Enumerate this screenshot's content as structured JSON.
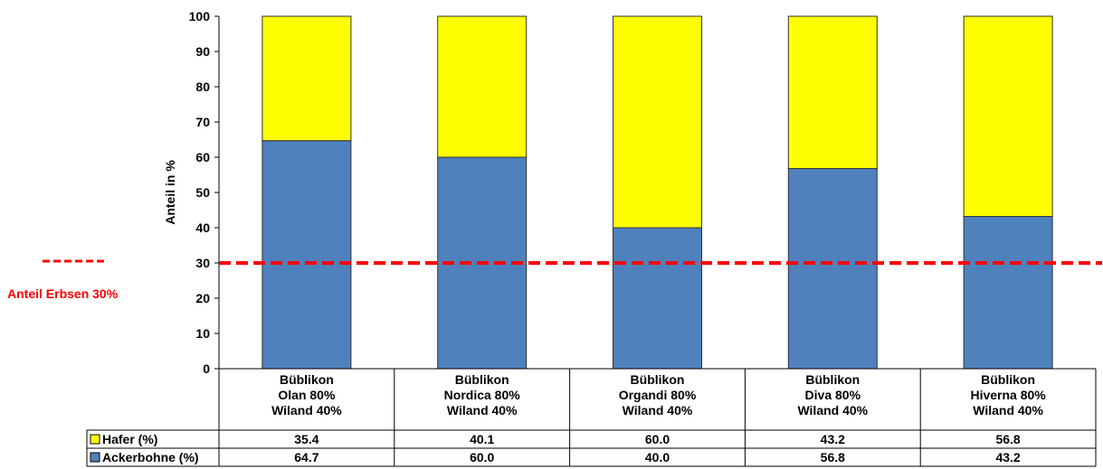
{
  "chart_data": {
    "type": "bar",
    "stacked": true,
    "ylabel": "Anteil in %",
    "ylim": [
      0,
      100
    ],
    "yticks": [
      0,
      10,
      20,
      30,
      40,
      50,
      60,
      70,
      80,
      90,
      100
    ],
    "grid": false,
    "categories": [
      [
        "Büblikon",
        "Olan 80%",
        "Wiland 40%"
      ],
      [
        "Büblikon",
        "Nordica 80%",
        "Wiland 40%"
      ],
      [
        "Büblikon",
        "Organdi 80%",
        "Wiland 40%"
      ],
      [
        "Büblikon",
        "Diva 80%",
        "Wiland 40%"
      ],
      [
        "Büblikon",
        "Hiverna 80%",
        "Wiland 40%"
      ]
    ],
    "series": [
      {
        "name": "Ackerbohne (%)",
        "color": "#4f81bd",
        "values": [
          64.7,
          60.0,
          40.0,
          56.8,
          43.2
        ],
        "labels": [
          "64.7",
          "60.0",
          "40.0",
          "56.8",
          "43.2"
        ]
      },
      {
        "name": "Hafer (%)",
        "color": "#ffff00",
        "values": [
          35.4,
          40.1,
          60.0,
          43.2,
          56.8
        ],
        "labels": [
          "35.4",
          "40.1",
          "60.0",
          "43.2",
          "56.8"
        ]
      }
    ],
    "data_table": true,
    "reference_line": {
      "value": 30,
      "label": "Anteil Erbsen 30%",
      "color": "#ff0000",
      "style": "dashed"
    }
  }
}
